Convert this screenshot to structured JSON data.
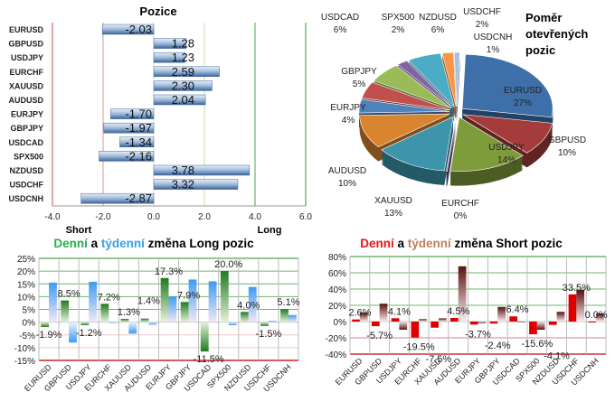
{
  "chart_data": [
    {
      "type": "bar",
      "orientation": "horizontal",
      "title": "Pozice",
      "categories": [
        "EURUSD",
        "GBPUSD",
        "USDJPY",
        "EURCHF",
        "XAUUSD",
        "AUDUSD",
        "EURJPY",
        "GBPJPY",
        "USDCAD",
        "SPX500",
        "NZDUSD",
        "USDCHF",
        "USDCNH"
      ],
      "values": [
        -2.03,
        1.28,
        1.23,
        2.59,
        2.3,
        2.04,
        -1.7,
        -1.97,
        -1.34,
        -2.16,
        3.78,
        3.32,
        -2.87
      ],
      "value_labels": [
        "-2.03",
        "1.28",
        "1.23",
        "2.59",
        "2.30",
        "2.04",
        "-1.70",
        "-1.97",
        "-1.34",
        "-2.16",
        "3.78",
        "3.32",
        "-2.87"
      ],
      "xlim": [
        -4,
        6
      ],
      "xticks": [
        "-4.0",
        "-2.0",
        "0.0",
        "2.0",
        "4.0",
        "6.0"
      ],
      "short_label": "Short",
      "long_label": "Long",
      "bar_color": "#4f81bd"
    },
    {
      "type": "pie",
      "title": "Poměr otevřených pozic",
      "title_lines": [
        "Poměr",
        "otevřených",
        "pozic"
      ],
      "categories": [
        "EURUSD",
        "GBPUSD",
        "USDJPY",
        "EURCHF",
        "XAUUSD",
        "AUDUSD",
        "EURJPY",
        "GBPJPY",
        "USDCAD",
        "SPX500",
        "NZDUSD",
        "USDCHF",
        "USDCNH"
      ],
      "values": [
        27,
        10,
        14,
        0,
        13,
        10,
        4,
        5,
        6,
        2,
        6,
        2,
        1
      ],
      "value_labels": [
        "27%",
        "10%",
        "14%",
        "0%",
        "13%",
        "10%",
        "4%",
        "5%",
        "6%",
        "2%",
        "6%",
        "2%",
        "1%"
      ],
      "colors": [
        "#3f6fa8",
        "#a33c3a",
        "#7f9c3c",
        "#6a4f8c",
        "#3c95ab",
        "#d9842f",
        "#4f81bd",
        "#c0504d",
        "#9bbb59",
        "#8064a2",
        "#4bacc6",
        "#f79646",
        "#a7c0de"
      ]
    },
    {
      "type": "bar",
      "title_parts": [
        "Denní",
        " a ",
        "týdenní",
        " změna Long pozic"
      ],
      "categories": [
        "EURUSD",
        "GBPUSD",
        "USDJPY",
        "EURCHF",
        "XAUUSD",
        "AUDUSD",
        "EURJPY",
        "GBPJPY",
        "USDCAD",
        "SPX500",
        "NZDUSD",
        "USDCHF",
        "USDCNH"
      ],
      "series": [
        {
          "values": [
            -1.9,
            8.5,
            -1.2,
            7.2,
            1.3,
            1.4,
            17.3,
            7.9,
            -11.5,
            20.0,
            4.0,
            -1.5,
            5.1
          ],
          "labels": [
            "-1.9%",
            "8.5%",
            "-1.2%",
            "7.2%",
            "1.3%",
            "1.4%",
            "17.3%",
            "7.9%",
            "-11.5%",
            "20.0%",
            "4.0%",
            "-1.5%",
            "5.1%"
          ],
          "color": "#2e8b2e"
        },
        {
          "values": [
            15.5,
            -8.0,
            15.8,
            -0.3,
            -4.5,
            -1.0,
            10.0,
            16.7,
            16.0,
            -1.2,
            13.8,
            0.5,
            2.8
          ],
          "color": "#4da6f0"
        }
      ],
      "ylim": [
        -15,
        25
      ],
      "yticks": [
        "25%",
        "20%",
        "15%",
        "10%",
        "5%",
        "0%",
        "-5%",
        "-10%",
        "-15%"
      ],
      "title_colors": [
        "#22b14c",
        "#000000",
        "#3aa0e8",
        "#000000"
      ]
    },
    {
      "type": "bar",
      "title_parts": [
        "Denní",
        " a ",
        "týdenní",
        " změna Short pozic"
      ],
      "categories": [
        "EURUSD",
        "GBPUSD",
        "USDJPY",
        "EURCHF",
        "XAUUSD",
        "AUDUSD",
        "EURJPY",
        "GBPJPY",
        "USDCAD",
        "SPX500",
        "NZDUSD",
        "USDCHF",
        "USDCNH"
      ],
      "series": [
        {
          "values": [
            2.6,
            -5.7,
            4.1,
            -19.5,
            -7.5,
            4.5,
            -3.7,
            -2.4,
            6.4,
            -15.6,
            -4.1,
            33.5,
            0.0
          ],
          "labels": [
            "2.6%",
            "-5.7%",
            "4.1%",
            "-19.5%",
            "-7.5%",
            "4.5%",
            "-3.7%",
            "-2.4%",
            "6.4%",
            "-15.6%",
            "-4.1%",
            "33.5%",
            "0.0%"
          ],
          "color": "#dd0000"
        },
        {
          "values": [
            11,
            22,
            -10,
            3,
            4,
            68,
            -2,
            18,
            -1,
            -10,
            12,
            39,
            10
          ],
          "color": "#6b1a1a"
        }
      ],
      "ylim": [
        -40,
        80
      ],
      "yticks": [
        "80%",
        "60%",
        "40%",
        "20%",
        "0%",
        "-20%",
        "-40%"
      ],
      "title_colors": [
        "#ee1111",
        "#000000",
        "#c0805a",
        "#000000"
      ]
    }
  ]
}
